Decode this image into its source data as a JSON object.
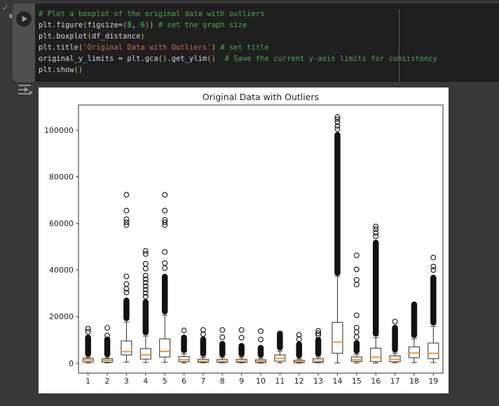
{
  "colors": {
    "page_bg": "#383838",
    "cell_bg": "#1f1f1f",
    "rail_bg": "#4f4f4f",
    "figure_bg": "#ffffff",
    "success_green": "#3fa33f",
    "median_orange": "#ff8c1a"
  },
  "icons": {
    "run": "play-circle-icon",
    "status": "check-icon",
    "output": "output-toggle-icon"
  },
  "cell": {
    "exec_status": "✓",
    "exec_time": "0s",
    "code_lines": [
      [
        {
          "t": "# Plot a boxplot of the original data with outliers",
          "c": "comment"
        }
      ],
      [
        {
          "t": "plt.figure",
          "c": "plain"
        },
        {
          "t": "(",
          "c": "b1"
        },
        {
          "t": "figsize=",
          "c": "plain"
        },
        {
          "t": "(",
          "c": "b2"
        },
        {
          "t": "8",
          "c": "num"
        },
        {
          "t": ", ",
          "c": "plain"
        },
        {
          "t": "6",
          "c": "num"
        },
        {
          "t": ")",
          "c": "b2"
        },
        {
          "t": ")",
          "c": "b1"
        },
        {
          "t": " ",
          "c": "plain"
        },
        {
          "t": "# set the graph size",
          "c": "comment"
        }
      ],
      [
        {
          "t": "plt.boxplot",
          "c": "plain"
        },
        {
          "t": "(",
          "c": "b1"
        },
        {
          "t": "df_distance",
          "c": "plain"
        },
        {
          "t": ")",
          "c": "b1"
        }
      ],
      [
        {
          "t": "plt.title",
          "c": "plain"
        },
        {
          "t": "(",
          "c": "b1"
        },
        {
          "t": "'Original Data with Outliers'",
          "c": "str"
        },
        {
          "t": ")",
          "c": "b1"
        },
        {
          "t": " ",
          "c": "plain"
        },
        {
          "t": "# set title",
          "c": "comment"
        }
      ],
      [
        {
          "t": "original_y_limits = plt.gca",
          "c": "plain"
        },
        {
          "t": "()",
          "c": "b1"
        },
        {
          "t": ".get_ylim",
          "c": "plain"
        },
        {
          "t": "()",
          "c": "b1"
        },
        {
          "t": "  ",
          "c": "plain"
        },
        {
          "t": "# Save the current y-axis limits for consistency",
          "c": "comment"
        }
      ],
      [
        {
          "t": "plt.show",
          "c": "plain"
        },
        {
          "t": "()",
          "c": "b1"
        }
      ]
    ]
  },
  "chart_data": {
    "type": "boxplot",
    "title": "Original Data with Outliers",
    "x_tick_labels": [
      "1",
      "2",
      "3",
      "4",
      "5",
      "6",
      "7",
      "8",
      "9",
      "10",
      "11",
      "12",
      "13",
      "14",
      "15",
      "16",
      "17",
      "18",
      "19"
    ],
    "y_ticks": [
      0,
      20000,
      40000,
      60000,
      80000,
      100000
    ],
    "ylim": [
      -4200,
      110800
    ],
    "grid": false,
    "legend": "none",
    "box_color": "#2e2e2e",
    "median_color": "#ff8c1a",
    "flier_marker": "open-circle",
    "series": [
      {
        "label": "1",
        "whisker_low": 200,
        "q1": 600,
        "median": 1400,
        "q3": 2100,
        "whisker_high": 2600,
        "outlier_band": [
          2800,
          12300
        ],
        "outliers": [
          13600,
          14800
        ]
      },
      {
        "label": "2",
        "whisker_low": 200,
        "q1": 500,
        "median": 1200,
        "q3": 1900,
        "whisker_high": 2400,
        "outlier_band": [
          2600,
          11500
        ],
        "outliers": [
          11900,
          15200
        ]
      },
      {
        "label": "3",
        "whisker_low": 500,
        "q1": 3600,
        "median": 5000,
        "q3": 9600,
        "whisker_high": 17700,
        "outlier_band": [
          18100,
          28200
        ],
        "outliers": [
          30400,
          31900,
          34000,
          37300,
          59300,
          60500,
          61800,
          65500,
          72300
        ]
      },
      {
        "label": "4",
        "whisker_low": 300,
        "q1": 1800,
        "median": 3600,
        "q3": 6300,
        "whisker_high": 11700,
        "outlier_band": [
          12000,
          27500
        ],
        "outliers": [
          28600,
          30100,
          31600,
          33100,
          34600,
          36100,
          37600,
          40600,
          42700,
          46900,
          48200
        ]
      },
      {
        "label": "5",
        "whisker_low": 400,
        "q1": 2700,
        "median": 5100,
        "q3": 10500,
        "whisker_high": 20700,
        "outlier_band": [
          21000,
          38400
        ],
        "outliers": [
          40800,
          43000,
          47800,
          59300,
          60500,
          61500,
          65500,
          72300
        ]
      },
      {
        "label": "6",
        "whisker_low": 200,
        "q1": 700,
        "median": 1500,
        "q3": 2900,
        "whisker_high": 4100,
        "outlier_band": [
          4400,
          12300
        ],
        "outliers": [
          14100
        ]
      },
      {
        "label": "7",
        "whisker_low": 200,
        "q1": 400,
        "median": 900,
        "q3": 1700,
        "whisker_high": 2500,
        "outlier_band": [
          2800,
          11500
        ],
        "outliers": [
          12500,
          14300
        ]
      },
      {
        "label": "8",
        "whisker_low": 200,
        "q1": 400,
        "median": 800,
        "q3": 1600,
        "whisker_high": 2400,
        "outlier_band": [
          2600,
          9600
        ],
        "outliers": [
          11200,
          14300
        ]
      },
      {
        "label": "9",
        "whisker_low": 200,
        "q1": 400,
        "median": 900,
        "q3": 1700,
        "whisker_high": 2500,
        "outlier_band": [
          2700,
          8700
        ],
        "outliers": [
          11000,
          14300
        ]
      },
      {
        "label": "10",
        "whisker_low": 100,
        "q1": 300,
        "median": 800,
        "q3": 1500,
        "whisker_high": 2200,
        "outlier_band": [
          2400,
          7900
        ],
        "outliers": [
          10200,
          13800
        ]
      },
      {
        "label": "11",
        "whisker_low": 200,
        "q1": 900,
        "median": 2100,
        "q3": 3600,
        "whisker_high": 5200,
        "outlier_band": [
          5500,
          14000
        ],
        "outliers": []
      },
      {
        "label": "12",
        "whisker_low": 100,
        "q1": 300,
        "median": 700,
        "q3": 1300,
        "whisker_high": 1900,
        "outlier_band": [
          2100,
          9400
        ],
        "outliers": [
          10400,
          12200
        ]
      },
      {
        "label": "13",
        "whisker_low": 200,
        "q1": 400,
        "median": 900,
        "q3": 1900,
        "whisker_high": 2700,
        "outlier_band": [
          2900,
          11300
        ],
        "outliers": [
          12100,
          12900,
          13900
        ]
      },
      {
        "label": "14",
        "whisker_low": 200,
        "q1": 4300,
        "median": 9100,
        "q3": 17600,
        "whisker_high": 37300,
        "outlier_band": [
          37500,
          99200
        ],
        "outliers": [
          100400,
          101800,
          103400,
          104700,
          105700
        ]
      },
      {
        "label": "15",
        "whisker_low": 200,
        "q1": 800,
        "median": 1500,
        "q3": 2700,
        "whisker_high": 3900,
        "outlier_band": [
          4100,
          10000
        ],
        "outliers": [
          11300,
          13400,
          15300,
          20600,
          33800,
          35800,
          40300,
          46300
        ]
      },
      {
        "label": "16",
        "whisker_low": 100,
        "q1": 800,
        "median": 2600,
        "q3": 6500,
        "whisker_high": 11000,
        "outlier_band": [
          11400,
          53000
        ],
        "outliers": [
          54500,
          56000,
          57500,
          58700
        ]
      },
      {
        "label": "17",
        "whisker_low": 200,
        "q1": 700,
        "median": 1700,
        "q3": 3200,
        "whisker_high": 4300,
        "outlier_band": [
          4600,
          16500
        ],
        "outliers": [
          17900
        ]
      },
      {
        "label": "18",
        "whisker_low": 300,
        "q1": 2400,
        "median": 4400,
        "q3": 7000,
        "whisker_high": 10500,
        "outlier_band": [
          10800,
          26500
        ],
        "outliers": []
      },
      {
        "label": "19",
        "whisker_low": 300,
        "q1": 2000,
        "median": 4300,
        "q3": 8700,
        "whisker_high": 15800,
        "outlier_band": [
          16200,
          38000
        ],
        "outliers": [
          40000,
          41500,
          45400
        ]
      }
    ]
  }
}
